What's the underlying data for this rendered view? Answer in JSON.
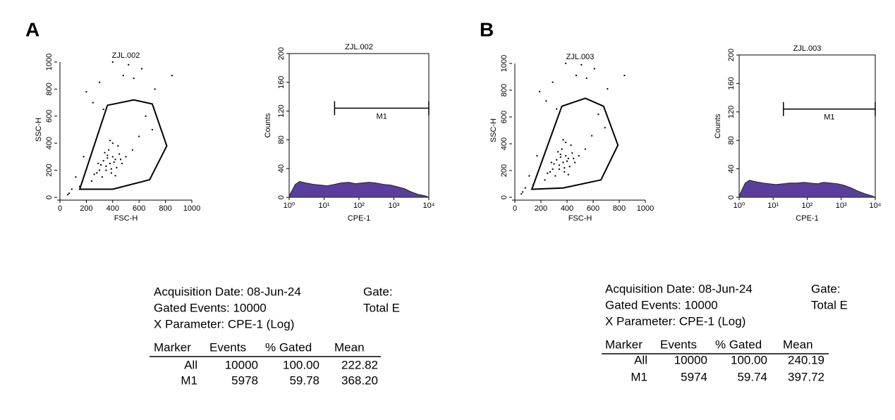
{
  "panels": [
    "A",
    "B"
  ],
  "chart_data": [
    {
      "type": "scatter",
      "title": "ZJL.002",
      "xlabel": "FSC-H",
      "ylabel": "SSC-H",
      "color": "#000000",
      "xlim": [
        0,
        1000
      ],
      "ylim": [
        0,
        1000
      ],
      "xticks": [
        0,
        200,
        400,
        600,
        800,
        1000
      ],
      "yticks": [
        0,
        200,
        400,
        600,
        800,
        1000
      ],
      "x": [
        380,
        350,
        420,
        400,
        300,
        450,
        330,
        390,
        360,
        410,
        280,
        470,
        340,
        430,
        370,
        310,
        500,
        260,
        440,
        390,
        350,
        460,
        320,
        400,
        550,
        240,
        380,
        420,
        290,
        360,
        150,
        120,
        90,
        70,
        60,
        180,
        600,
        650,
        700,
        250,
        300,
        200,
        560,
        480,
        620,
        720,
        850,
        400,
        520,
        330
      ],
      "y": [
        250,
        230,
        280,
        300,
        200,
        320,
        270,
        210,
        290,
        260,
        180,
        250,
        330,
        220,
        350,
        240,
        300,
        170,
        380,
        180,
        200,
        280,
        150,
        400,
        350,
        120,
        420,
        160,
        250,
        310,
        80,
        150,
        60,
        30,
        20,
        300,
        450,
        600,
        500,
        700,
        850,
        780,
        880,
        900,
        950,
        800,
        900,
        1000,
        980,
        650
      ],
      "gate": {
        "x": [
          150,
          360,
          560,
          700,
          810,
          680,
          400
        ],
        "y": [
          60,
          680,
          720,
          690,
          380,
          130,
          60
        ]
      }
    },
    {
      "type": "area",
      "title": "ZJL.002",
      "xlabel": "CPE-1",
      "ylabel": "Counts",
      "color": "#5a3e9e",
      "xscale": "log",
      "xlim": [
        1,
        10000
      ],
      "ylim": [
        0,
        200
      ],
      "xticks": [
        {
          "value": 1,
          "label": "10⁰"
        },
        {
          "value": 10,
          "label": "10¹"
        },
        {
          "value": 100,
          "label": "10²"
        },
        {
          "value": 1000,
          "label": "10³"
        },
        {
          "value": 10000,
          "label": "10⁴"
        }
      ],
      "yticks": [
        0,
        40,
        80,
        120,
        160,
        200
      ],
      "x": [
        1,
        1.5,
        2,
        3,
        5,
        8,
        12,
        20,
        30,
        50,
        80,
        120,
        200,
        300,
        500,
        800,
        1200,
        2000,
        3000,
        5000,
        8000,
        10000
      ],
      "values": [
        2,
        18,
        22,
        20,
        18,
        17,
        16,
        18,
        20,
        21,
        19,
        20,
        21,
        20,
        18,
        17,
        15,
        12,
        8,
        4,
        2,
        0
      ],
      "markers": [
        {
          "label": "M1",
          "x": [
            20,
            10000
          ],
          "y": 124
        }
      ]
    },
    {
      "type": "scatter",
      "title": "ZJL.003",
      "xlabel": "FSC-H",
      "ylabel": "SSC-H",
      "color": "#000000",
      "xlim": [
        0,
        1000
      ],
      "ylim": [
        0,
        1000
      ],
      "xticks": [
        0,
        200,
        400,
        600,
        800,
        1000
      ],
      "yticks": [
        0,
        200,
        400,
        600,
        800,
        1000
      ],
      "x": [
        370,
        340,
        410,
        390,
        290,
        440,
        320,
        380,
        350,
        400,
        270,
        460,
        330,
        420,
        360,
        300,
        490,
        250,
        430,
        380,
        340,
        450,
        310,
        390,
        540,
        230,
        370,
        410,
        280,
        350,
        140,
        110,
        80,
        60,
        50,
        170,
        590,
        640,
        690,
        240,
        290,
        190,
        550,
        470,
        610,
        710,
        840,
        390,
        510,
        320
      ],
      "y": [
        260,
        240,
        290,
        310,
        210,
        330,
        280,
        220,
        300,
        270,
        190,
        260,
        340,
        230,
        360,
        250,
        310,
        180,
        390,
        190,
        210,
        290,
        160,
        410,
        360,
        130,
        430,
        170,
        260,
        320,
        90,
        160,
        70,
        40,
        25,
        310,
        460,
        620,
        520,
        720,
        860,
        790,
        890,
        910,
        960,
        810,
        910,
        1000,
        990,
        660
      ],
      "gate": {
        "x": [
          130,
          360,
          540,
          680,
          790,
          660,
          370
        ],
        "y": [
          60,
          680,
          740,
          680,
          390,
          130,
          70
        ]
      }
    },
    {
      "type": "area",
      "title": "ZJL.003",
      "xlabel": "CPE-1",
      "ylabel": "Counts",
      "color": "#5a3e9e",
      "xscale": "log",
      "xlim": [
        1,
        10000
      ],
      "ylim": [
        0,
        200
      ],
      "xticks": [
        {
          "value": 1,
          "label": "10⁰"
        },
        {
          "value": 10,
          "label": "10¹"
        },
        {
          "value": 100,
          "label": "10²"
        },
        {
          "value": 1000,
          "label": "10³"
        },
        {
          "value": 10000,
          "label": "10⁴"
        }
      ],
      "yticks": [
        0,
        40,
        80,
        120,
        160,
        200
      ],
      "x": [
        1,
        1.5,
        2,
        3,
        5,
        8,
        12,
        20,
        30,
        50,
        80,
        120,
        200,
        300,
        500,
        800,
        1200,
        2000,
        3000,
        5000,
        8000,
        10000
      ],
      "values": [
        2,
        20,
        24,
        22,
        20,
        19,
        18,
        19,
        20,
        20,
        21,
        20,
        19,
        21,
        20,
        19,
        17,
        13,
        9,
        5,
        2,
        0
      ],
      "markers": [
        {
          "label": "M1",
          "x": [
            20,
            10000
          ],
          "y": 124
        }
      ]
    }
  ],
  "stats": [
    {
      "lines": [
        "Acquisition Date: 08-Jun-24",
        "Gated Events: 10000",
        "X Parameter: CPE-1 (Log)"
      ],
      "side": [
        "Gate:",
        "Total E"
      ],
      "table": {
        "header": [
          "Marker",
          "Events",
          "% Gated",
          "Mean"
        ],
        "rows": [
          [
            "All",
            "10000",
            "100.00",
            "222.82"
          ],
          [
            "M1",
            "5978",
            "59.78",
            "368.20"
          ]
        ]
      }
    },
    {
      "lines": [
        "Acquisition Date: 08-Jun-24",
        "Gated Events: 10000",
        "X Parameter: CPE-1 (Log)"
      ],
      "side": [
        "Gate:",
        "Total E"
      ],
      "table": {
        "header": [
          "Marker",
          "Events",
          "% Gated",
          "Mean"
        ],
        "rows": [
          [
            "All",
            "10000",
            "100.00",
            "240.19"
          ],
          [
            "M1",
            "5974",
            "59.74",
            "397.72"
          ]
        ]
      }
    }
  ]
}
